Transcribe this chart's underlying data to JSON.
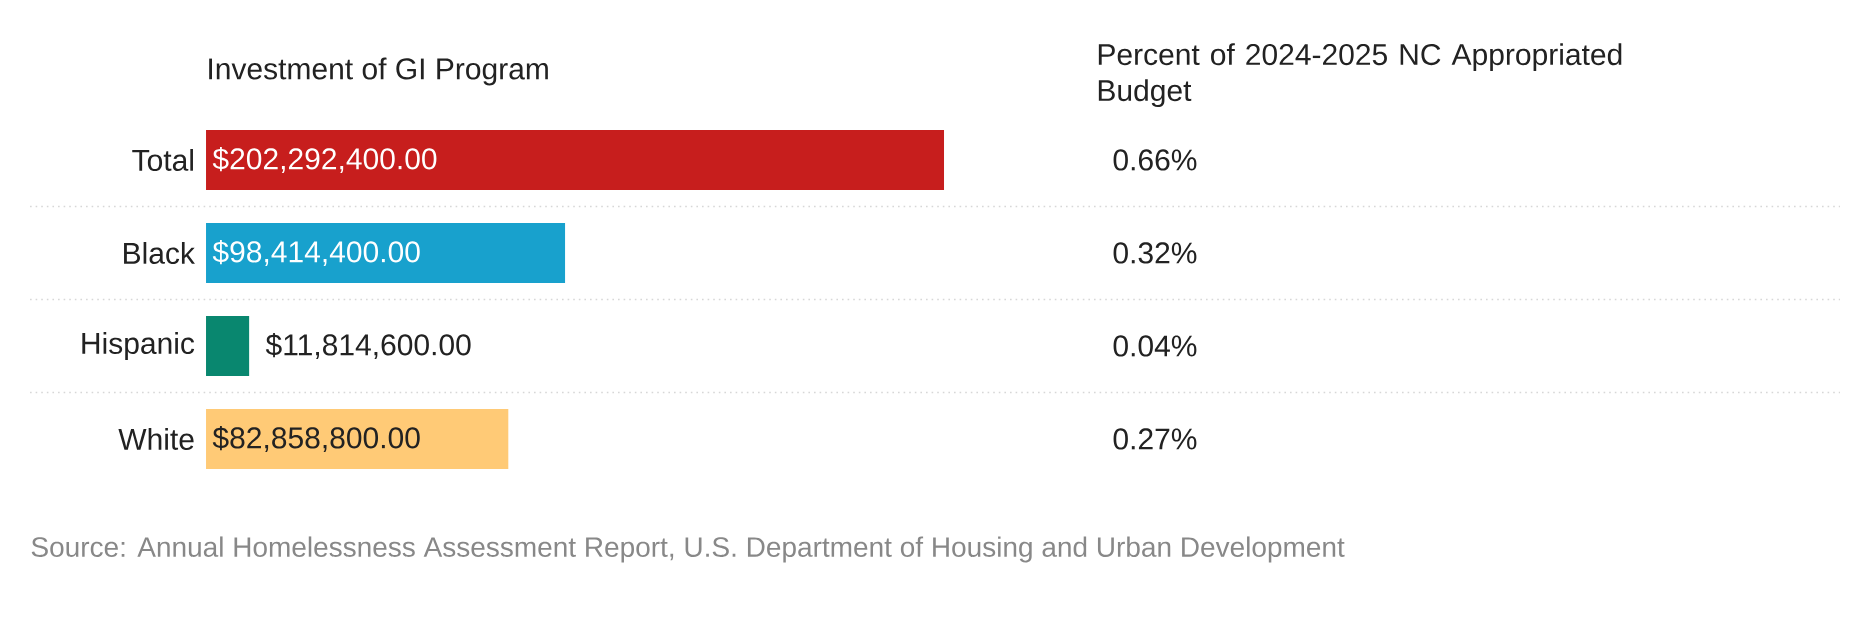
{
  "chart_data": [
    {
      "type": "bar",
      "orientation": "horizontal",
      "title": "Investment of GI Program",
      "categories": [
        "Total",
        "Black",
        "Hispanic",
        "White"
      ],
      "values": [
        202292400,
        98414400,
        11814600,
        82858800
      ],
      "colors": [
        "#c71e1d",
        "#18a1cd",
        "#09876f",
        "#ffca76"
      ],
      "value_labels": [
        "$202,292,400.00",
        "$98,414,400.00",
        "$11,814,600.00",
        "$82,858,800.00"
      ],
      "annotations": [
        "Source: Annual Homelessness Assessment Report, U.S. Department of Housing and Urban Development"
      ]
    },
    {
      "type": "other",
      "title": "Percent of 2024-2025 NC Appropriated Budget",
      "values": [
        0.66,
        0.32,
        0.04,
        0.27
      ],
      "value_labels": [
        "0.66%",
        "0.32%",
        "0.04%",
        "0.27%"
      ]
    }
  ]
}
